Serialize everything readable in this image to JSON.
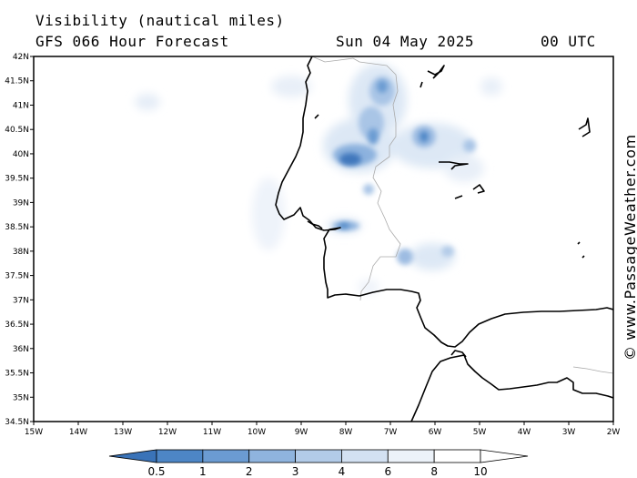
{
  "title": {
    "line1": "Visibility (nautical miles)",
    "line2": "GFS 066 Hour Forecast",
    "date": "Sun 04 May 2025",
    "time": "00 UTC"
  },
  "watermark": "© www.PassageWeather.com",
  "map": {
    "lon_range": [
      -15,
      -2
    ],
    "lat_range": [
      34.5,
      42
    ],
    "lon_labels": [
      "15W",
      "14W",
      "13W",
      "12W",
      "11W",
      "10W",
      "9W",
      "8W",
      "7W",
      "6W",
      "5W",
      "4W",
      "3W",
      "2W"
    ],
    "lat_labels": [
      "34.5N",
      "35N",
      "35.5N",
      "36N",
      "36.5N",
      "37N",
      "37.5N",
      "38N",
      "38.5N",
      "39N",
      "39.5N",
      "40N",
      "40.5N",
      "41N",
      "41.5N",
      "42N"
    ]
  },
  "colorbar": {
    "labels": [
      "0.5",
      "1",
      "2",
      "3",
      "4",
      "6",
      "8",
      "10"
    ],
    "colors": [
      "#3a73b8",
      "#4d86c6",
      "#6b9bd2",
      "#8fb4de",
      "#b2cbe8",
      "#d3e1f2",
      "#ecf2f9",
      "#ffffff"
    ]
  }
}
